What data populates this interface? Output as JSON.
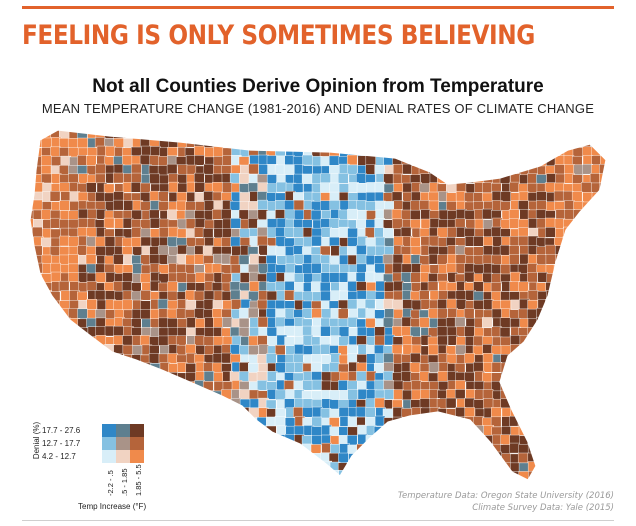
{
  "header": {
    "headline": "FEELING IS ONLY SOMETIMES BELIEVING",
    "title": "Not all Counties Derive Opinion from Temperature",
    "subtitle": "MEAN TEMPERATURE CHANGE (1981-2016) AND DENIAL RATES OF CLIMATE CHANGE"
  },
  "legend": {
    "y_label": "Denial (%)",
    "rows": [
      "17.7 - 27.6",
      "12.7 - 17.7",
      "4.2 - 12.7"
    ],
    "columns": [
      "-2.2 - .5",
      ".5 - 1.85",
      "1.85 - 5.5"
    ],
    "x_label": "Temp Increase (°F)",
    "colors": {
      "high_denial": [
        "#2f87c7",
        "#5e7f8f",
        "#6e3a24"
      ],
      "mid_denial": [
        "#85c1e2",
        "#a99388",
        "#b5643a"
      ],
      "low_denial": [
        "#d8eef8",
        "#f1d3c2",
        "#f08a4b"
      ]
    }
  },
  "sources": [
    "Temperature Data: Oregon State University (2016)",
    "Climate Survey Data: Yale (2015)"
  ],
  "map": {
    "region": "Contiguous United States counties"
  }
}
